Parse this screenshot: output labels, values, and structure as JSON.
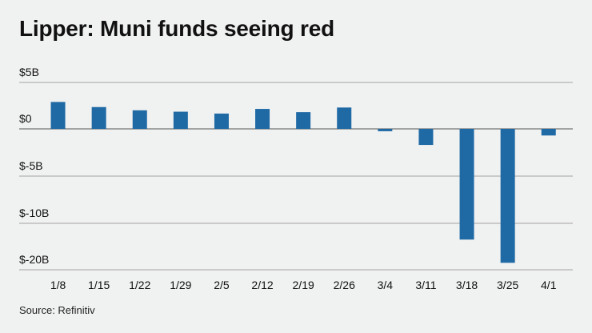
{
  "title": "Lipper: Muni funds seeing red",
  "source": "Source: Refinitiv",
  "chart_data": {
    "type": "bar",
    "title": "Lipper: Muni funds seeing red",
    "xlabel": "",
    "ylabel": "",
    "categories": [
      "1/8",
      "1/15",
      "1/22",
      "1/29",
      "2/5",
      "2/12",
      "2/19",
      "2/26",
      "3/4",
      "3/11",
      "3/18",
      "3/25",
      "4/1"
    ],
    "values": [
      2.9,
      2.35,
      2.0,
      1.85,
      1.65,
      2.15,
      1.8,
      2.3,
      -0.25,
      -1.7,
      -13.5,
      -18.5,
      -0.7
    ],
    "y_ticks": [
      "$5B",
      "$0",
      "$-5B",
      "$-10B",
      "$-20B"
    ],
    "bar_color": "#1f6aa5",
    "grid": true,
    "legend": "none"
  }
}
